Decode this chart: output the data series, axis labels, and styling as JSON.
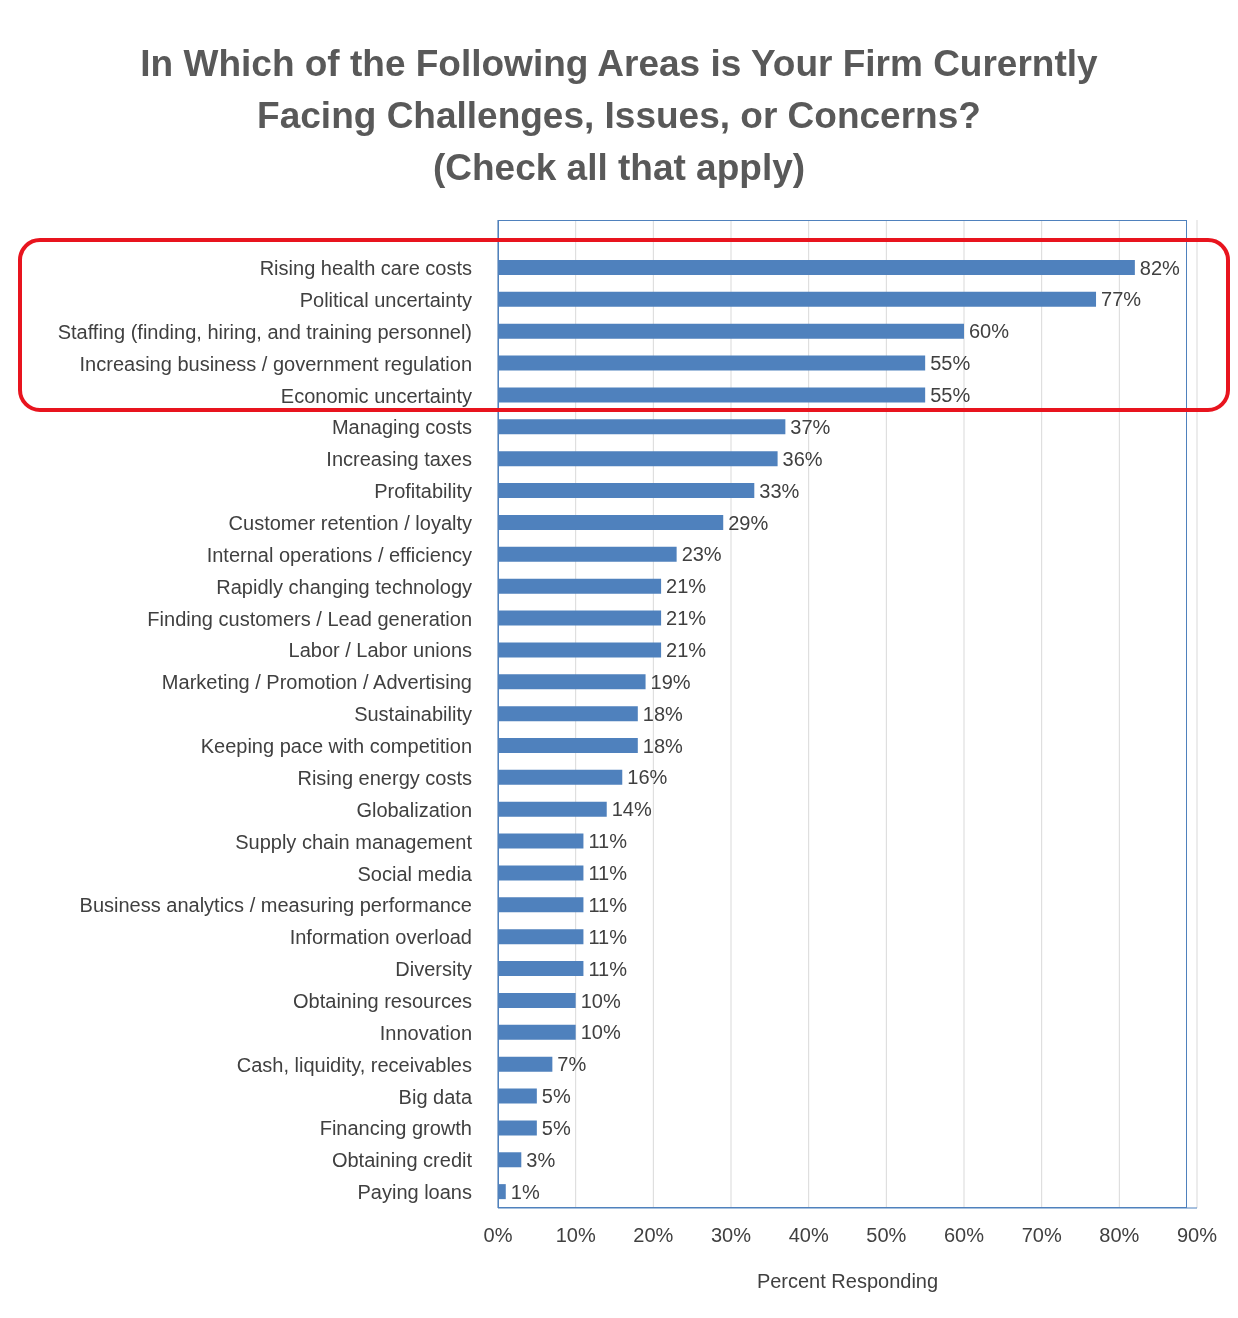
{
  "chart_data": {
    "type": "bar",
    "orientation": "horizontal",
    "title": "In Which of the Following Areas is Your Firm Curerntly\nFacing Challenges, Issues, or Concerns?\n(Check all that apply)",
    "xlabel": "Percent Responding",
    "categories": [
      "Rising health care costs",
      "Political uncertainty",
      "Staffing (finding, hiring, and training personnel)",
      "Increasing business / government regulation",
      "Economic uncertainty",
      "Managing costs",
      "Increasing taxes",
      "Profitability",
      "Customer retention / loyalty",
      "Internal operations / efficiency",
      "Rapidly changing technology",
      "Finding customers / Lead generation",
      "Labor / Labor unions",
      "Marketing / Promotion / Advertising",
      "Sustainability",
      "Keeping pace with competition",
      "Rising energy costs",
      "Globalization",
      "Supply chain management",
      "Social media",
      "Business analytics / measuring performance",
      "Information overload",
      "Diversity",
      "Obtaining resources",
      "Innovation",
      "Cash, liquidity, receivables",
      "Big data",
      "Financing growth",
      "Obtaining credit",
      "Paying loans"
    ],
    "values": [
      82,
      77,
      60,
      55,
      55,
      37,
      36,
      33,
      29,
      23,
      21,
      21,
      21,
      19,
      18,
      18,
      16,
      14,
      11,
      11,
      11,
      11,
      11,
      10,
      10,
      7,
      5,
      5,
      3,
      1
    ],
    "value_labels": [
      "82%",
      "77%",
      "60%",
      "55%",
      "55%",
      "37%",
      "36%",
      "33%",
      "29%",
      "23%",
      "21%",
      "21%",
      "21%",
      "19%",
      "18%",
      "18%",
      "16%",
      "14%",
      "11%",
      "11%",
      "11%",
      "11%",
      "11%",
      "10%",
      "10%",
      "7%",
      "5%",
      "5%",
      "3%",
      "1%"
    ],
    "color": "#4f81bd",
    "xlim": [
      0,
      90
    ],
    "xticks": [
      {
        "value": 0,
        "label": "0%"
      },
      {
        "value": 10,
        "label": "10%"
      },
      {
        "value": 20,
        "label": "20%"
      },
      {
        "value": 30,
        "label": "30%"
      },
      {
        "value": 40,
        "label": "40%"
      },
      {
        "value": 50,
        "label": "50%"
      },
      {
        "value": 60,
        "label": "60%"
      },
      {
        "value": 70,
        "label": "70%"
      },
      {
        "value": 80,
        "label": "80%"
      },
      {
        "value": 90,
        "label": "90%"
      }
    ],
    "grid": "x",
    "legend": false
  }
}
